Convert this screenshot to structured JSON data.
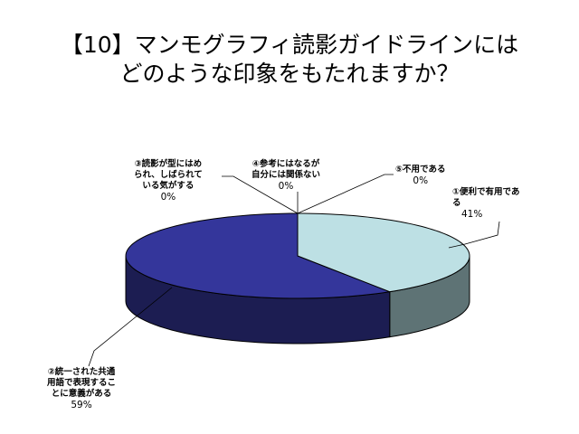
{
  "title_line1": "【10】マンモグラフィ読影ガイドラインには",
  "title_line2": "どのような印象をもたれますか？",
  "colors": {
    "slice1_top": "#bde0e4",
    "slice1_side": "#5e7375",
    "slice2_top": "#34369b",
    "slice2_side": "#1c1d52",
    "edge": "#000000"
  },
  "chart_data": {
    "type": "pie",
    "style": "3d",
    "title": "【10】マンモグラフィ読影ガイドラインにはどのような印象をもたれますか？",
    "slices": [
      {
        "label": "①便利で有用である",
        "lines": [
          "①便利で有用であ",
          "る"
        ],
        "value": 41,
        "value_text": "41%"
      },
      {
        "label": "②統一された共通用語で表現することに意義がある",
        "lines": [
          "②統一された共通",
          "用語で表現するこ",
          "とに意義がある"
        ],
        "value": 59,
        "value_text": "59%"
      },
      {
        "label": "③読影が型にはめられ、しばられている気がする",
        "lines": [
          "③読影が型にはめ",
          "られ、しばられて",
          "いる気がする"
        ],
        "value": 0,
        "value_text": "0%"
      },
      {
        "label": "④参考にはなるが自分には関係ない",
        "lines": [
          "④参考にはなるが",
          "自分には関係ない"
        ],
        "value": 0,
        "value_text": "0%"
      },
      {
        "label": "⑤不用である",
        "lines": [
          "⑤不用である"
        ],
        "value": 0,
        "value_text": "0%"
      }
    ]
  }
}
